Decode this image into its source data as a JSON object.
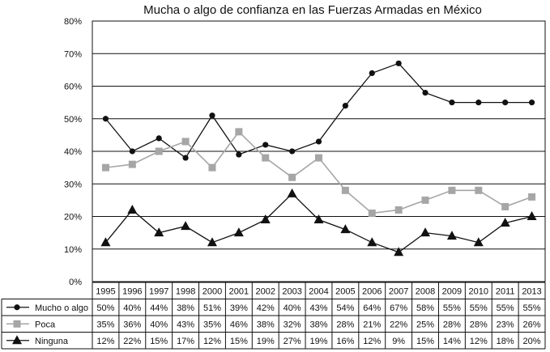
{
  "chart_data": {
    "type": "line",
    "title": "Mucha o algo de confianza en las Fuerzas Armadas en México",
    "xlabel": "",
    "ylabel": "",
    "ylim": [
      0,
      80
    ],
    "y_tick_labels": [
      "0%",
      "10%",
      "20%",
      "30%",
      "40%",
      "50%",
      "60%",
      "70%",
      "80%"
    ],
    "grid": "horizontal",
    "categories": [
      "1995",
      "1996",
      "1997",
      "1998",
      "2000",
      "2001",
      "2002",
      "2003",
      "2004",
      "2005",
      "2006",
      "2007",
      "2008",
      "2009",
      "2010",
      "2011",
      "2013"
    ],
    "series": [
      {
        "name": "Mucho o algo",
        "marker": "circle",
        "color": "#111111",
        "values": [
          50,
          40,
          44,
          38,
          51,
          39,
          42,
          40,
          43,
          54,
          64,
          67,
          58,
          55,
          55,
          55,
          55
        ],
        "labels": [
          "50%",
          "40%",
          "44%",
          "38%",
          "51%",
          "39%",
          "42%",
          "40%",
          "43%",
          "54%",
          "64%",
          "67%",
          "58%",
          "55%",
          "55%",
          "55%",
          "55%"
        ]
      },
      {
        "name": "Poca",
        "marker": "square",
        "color": "#a6a6a6",
        "values": [
          35,
          36,
          40,
          43,
          35,
          46,
          38,
          32,
          38,
          28,
          21,
          22,
          25,
          28,
          28,
          23,
          26
        ],
        "labels": [
          "35%",
          "36%",
          "40%",
          "43%",
          "35%",
          "46%",
          "38%",
          "32%",
          "38%",
          "28%",
          "21%",
          "22%",
          "25%",
          "28%",
          "28%",
          "23%",
          "26%"
        ]
      },
      {
        "name": "Ninguna",
        "marker": "triangle",
        "color": "#111111",
        "values": [
          12,
          22,
          15,
          17,
          12,
          15,
          19,
          27,
          19,
          16,
          12,
          9,
          15,
          14,
          12,
          18,
          20
        ],
        "labels": [
          "12%",
          "22%",
          "15%",
          "17%",
          "12%",
          "15%",
          "19%",
          "27%",
          "19%",
          "16%",
          "12%",
          "9%",
          "15%",
          "14%",
          "12%",
          "18%",
          "20%"
        ]
      }
    ]
  }
}
